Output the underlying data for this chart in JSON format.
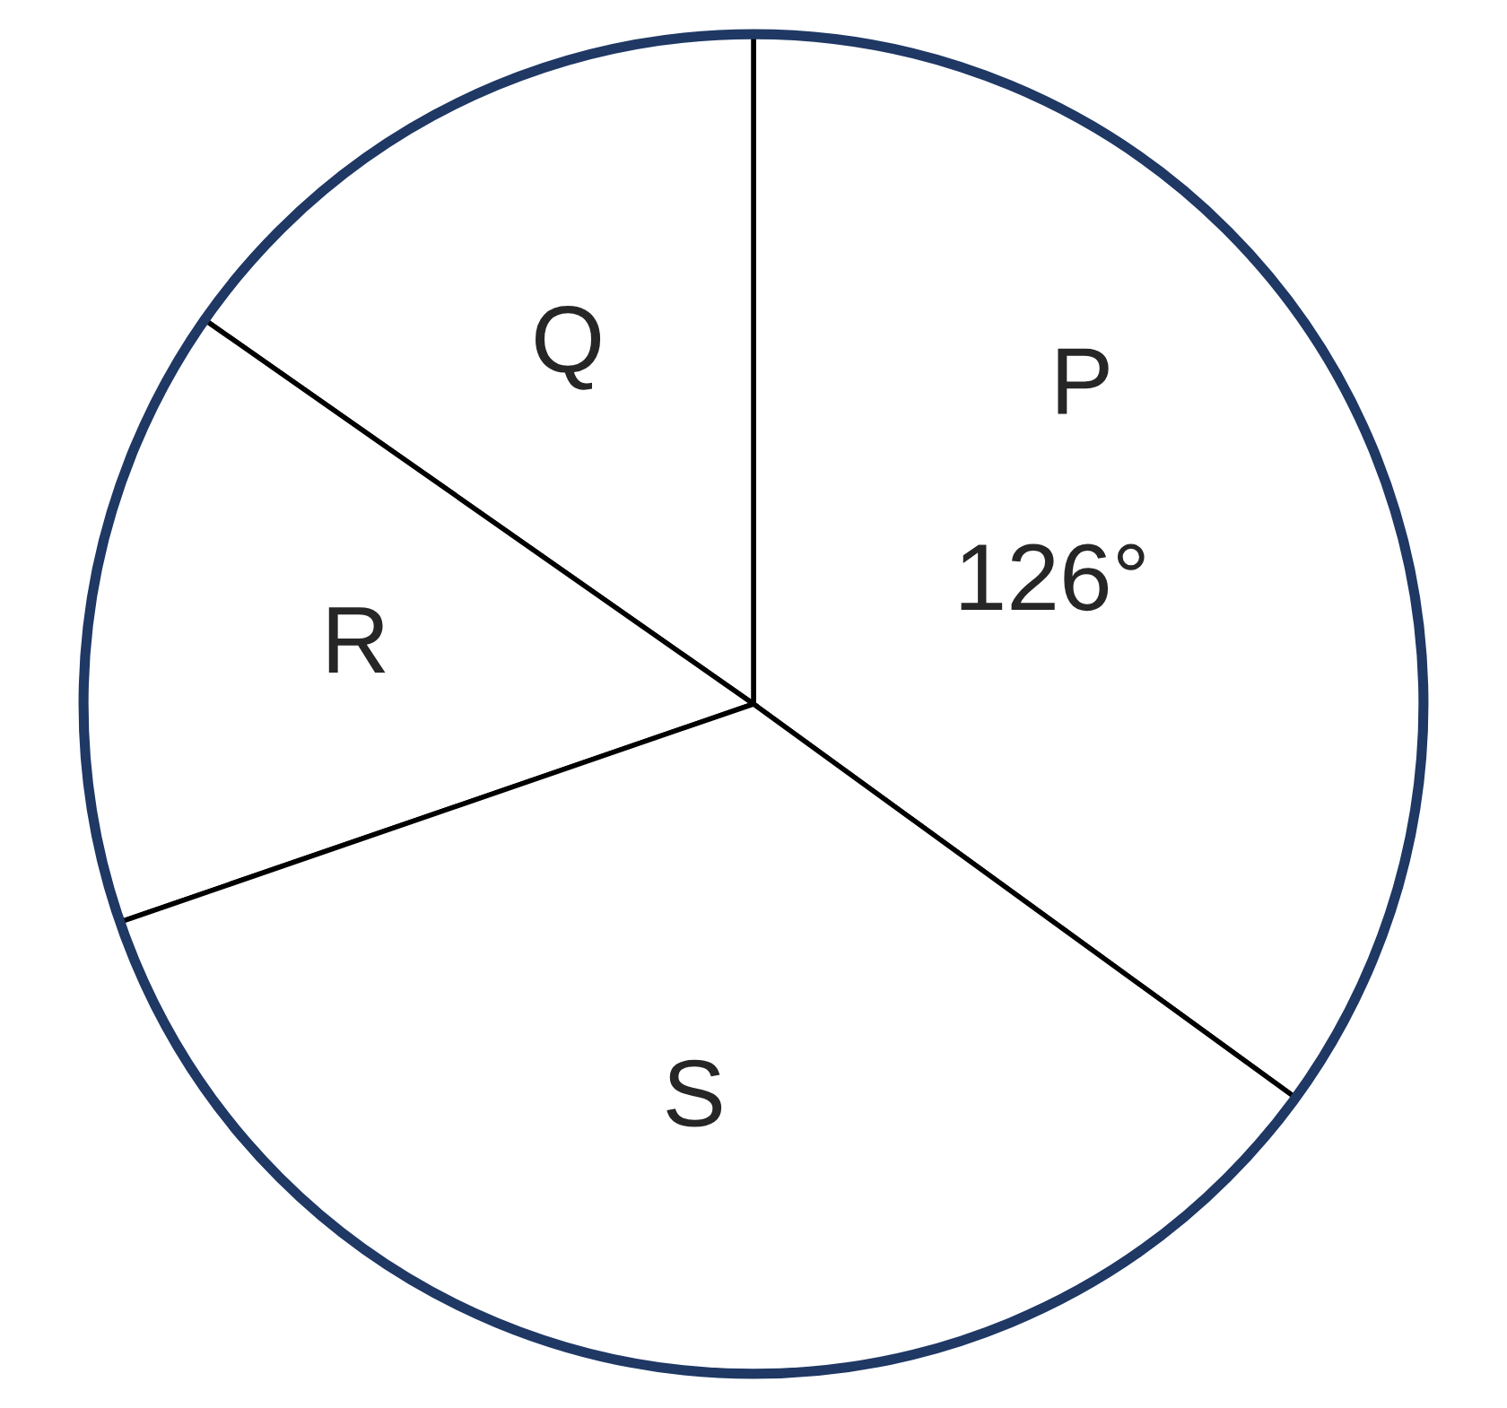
{
  "chart_data": {
    "type": "pie",
    "categories": [
      "P",
      "Q",
      "R",
      "S"
    ],
    "values": [
      126,
      55,
      54,
      125
    ],
    "colors": [
      "#ffffff",
      "#ffffff",
      "#ffffff",
      "#ffffff"
    ],
    "value_labels": [
      "126°",
      null,
      null,
      null
    ]
  }
}
